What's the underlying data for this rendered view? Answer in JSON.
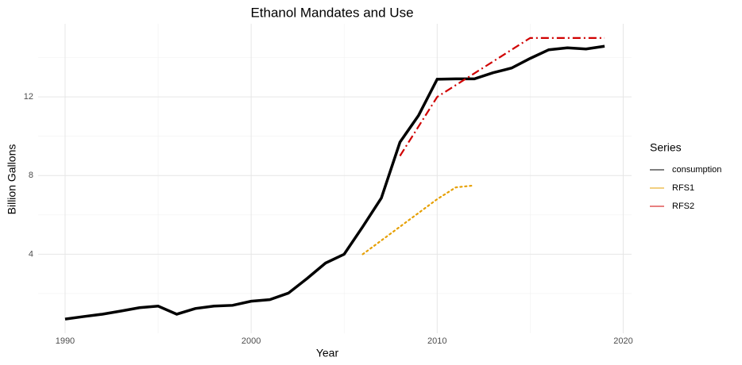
{
  "chart_data": {
    "type": "line",
    "title": "Ethanol Mandates and Use",
    "x_label": "Year",
    "y_label": "Billion Gallons",
    "x": [
      1990,
      1991,
      1992,
      1993,
      1994,
      1995,
      1996,
      1997,
      1998,
      1999,
      2000,
      2001,
      2002,
      2003,
      2004,
      2005,
      2006,
      2007,
      2008,
      2009,
      2010,
      2011,
      2012,
      2013,
      2014,
      2015,
      2016,
      2017,
      2018,
      2019
    ],
    "series": [
      {
        "name": "consumption",
        "color": "#000000",
        "dash": "solid",
        "values": [
          0.7,
          0.83,
          0.95,
          1.11,
          1.28,
          1.36,
          0.95,
          1.24,
          1.36,
          1.4,
          1.61,
          1.69,
          2.02,
          2.76,
          3.55,
          4.0,
          5.4,
          6.86,
          9.7,
          11.06,
          12.9,
          12.92,
          12.92,
          13.23,
          13.47,
          13.96,
          14.4,
          14.5,
          14.44,
          14.58
        ]
      },
      {
        "name": "RFS1",
        "color": "#E69F00",
        "dash": "dotted",
        "values": [
          null,
          null,
          null,
          null,
          null,
          null,
          null,
          null,
          null,
          null,
          null,
          null,
          null,
          null,
          null,
          null,
          4.0,
          4.7,
          5.4,
          6.1,
          6.8,
          7.4,
          7.5,
          null,
          null,
          null,
          null,
          null,
          null,
          null
        ]
      },
      {
        "name": "RFS2",
        "color": "#D00000",
        "dash": "dashdot",
        "values": [
          null,
          null,
          null,
          null,
          null,
          null,
          null,
          null,
          null,
          null,
          null,
          null,
          null,
          null,
          null,
          null,
          null,
          null,
          9.0,
          10.5,
          12.0,
          12.6,
          13.2,
          13.8,
          14.4,
          15.0,
          15.0,
          15.0,
          15.0,
          15.0
        ]
      }
    ],
    "legend_title": "Series",
    "legend_position": "right",
    "xlim": [
      1988.55,
      2020.45
    ],
    "xticks": [
      1990,
      2000,
      2010,
      2020
    ],
    "x_minor_grid": [
      1995,
      2005,
      2015
    ],
    "ylim": [
      -0.02,
      15.72
    ],
    "yticks": [
      4,
      8,
      12
    ],
    "y_minor_grid": [
      2,
      6,
      10,
      14
    ],
    "grid": true
  }
}
